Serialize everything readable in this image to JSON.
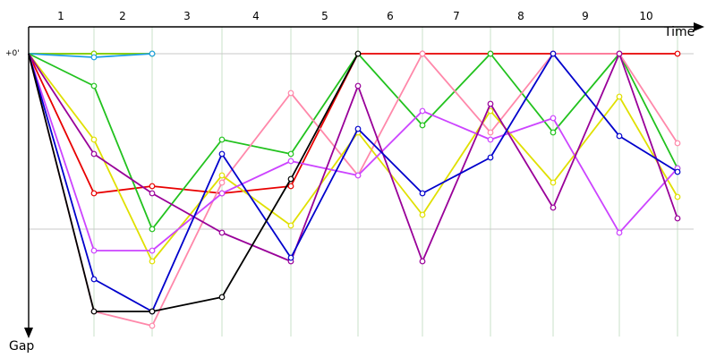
{
  "chart_data": {
    "type": "line",
    "x_axis_label": "Time",
    "y_axis_label": "Gap",
    "zero_label": "+0'",
    "lap_labels": [
      "1",
      "2",
      "3",
      "4",
      "5",
      "6",
      "7",
      "8",
      "9",
      "10"
    ],
    "colors": {
      "background": "#ffffff",
      "axis": "#000000",
      "lap_gridline": "#c8e0c8",
      "gap_gridline": "#c8c8c8"
    },
    "series": [
      {
        "color": "#2e8b22",
        "points": [
          [
            0,
            0
          ],
          [
            1,
            0
          ],
          [
            2,
            0
          ]
        ]
      },
      {
        "color": "#8fd400",
        "points": [
          [
            0,
            0
          ],
          [
            1,
            0
          ],
          [
            2,
            0
          ]
        ]
      },
      {
        "color": "#1e9fe6",
        "points": [
          [
            0,
            0
          ],
          [
            1,
            1
          ],
          [
            2,
            0
          ]
        ]
      },
      {
        "color": "#e80000",
        "points": [
          [
            0,
            0
          ],
          [
            1,
            39
          ],
          [
            2,
            37
          ],
          [
            3,
            39
          ],
          [
            4,
            37
          ],
          [
            5,
            0
          ],
          [
            6,
            0
          ],
          [
            7,
            0
          ],
          [
            8,
            0
          ],
          [
            9,
            0
          ],
          [
            10,
            0
          ]
        ]
      },
      {
        "color": "#22c21e",
        "points": [
          [
            0,
            0
          ],
          [
            1,
            9
          ],
          [
            2,
            49
          ],
          [
            3,
            24
          ],
          [
            4,
            28
          ],
          [
            5,
            0
          ],
          [
            6,
            20
          ],
          [
            7,
            0
          ],
          [
            8,
            22
          ],
          [
            9,
            0
          ],
          [
            10,
            32
          ]
        ]
      },
      {
        "color": "#ff88aa",
        "points": [
          [
            0,
            0
          ],
          [
            1,
            72
          ],
          [
            2,
            76
          ],
          [
            3,
            36
          ],
          [
            4,
            11
          ],
          [
            5,
            34
          ],
          [
            6,
            0
          ],
          [
            7,
            22
          ],
          [
            8,
            0
          ],
          [
            9,
            0
          ],
          [
            10,
            25
          ]
        ]
      },
      {
        "color": "#e0e000",
        "points": [
          [
            0,
            0
          ],
          [
            1,
            24
          ],
          [
            2,
            58
          ],
          [
            3,
            34
          ],
          [
            4,
            48
          ],
          [
            5,
            22
          ],
          [
            6,
            45
          ],
          [
            7,
            16
          ],
          [
            8,
            36
          ],
          [
            9,
            12
          ],
          [
            10,
            40
          ]
        ]
      },
      {
        "color": "#cc44ff",
        "points": [
          [
            0,
            0
          ],
          [
            1,
            55
          ],
          [
            2,
            55
          ],
          [
            3,
            39
          ],
          [
            4,
            30
          ],
          [
            5,
            34
          ],
          [
            6,
            16
          ],
          [
            7,
            24
          ],
          [
            8,
            18
          ],
          [
            9,
            50
          ],
          [
            10,
            32
          ]
        ]
      },
      {
        "color": "#990099",
        "points": [
          [
            0,
            0
          ],
          [
            1,
            28
          ],
          [
            2,
            39
          ],
          [
            3,
            50
          ],
          [
            4,
            58
          ],
          [
            5,
            9
          ],
          [
            6,
            58
          ],
          [
            7,
            14
          ],
          [
            8,
            43
          ],
          [
            9,
            0
          ],
          [
            10,
            46
          ]
        ]
      },
      {
        "color": "#0000cc",
        "points": [
          [
            0,
            0
          ],
          [
            1,
            63
          ],
          [
            2,
            72
          ],
          [
            3,
            28
          ],
          [
            4,
            57
          ],
          [
            5,
            21
          ],
          [
            6,
            39
          ],
          [
            7,
            29
          ],
          [
            8,
            0
          ],
          [
            9,
            23
          ],
          [
            10,
            33
          ]
        ]
      },
      {
        "color": "#000000",
        "points": [
          [
            0,
            0
          ],
          [
            1,
            72
          ],
          [
            2,
            72
          ],
          [
            3,
            68
          ],
          [
            4,
            35
          ],
          [
            5,
            0
          ]
        ]
      }
    ]
  }
}
